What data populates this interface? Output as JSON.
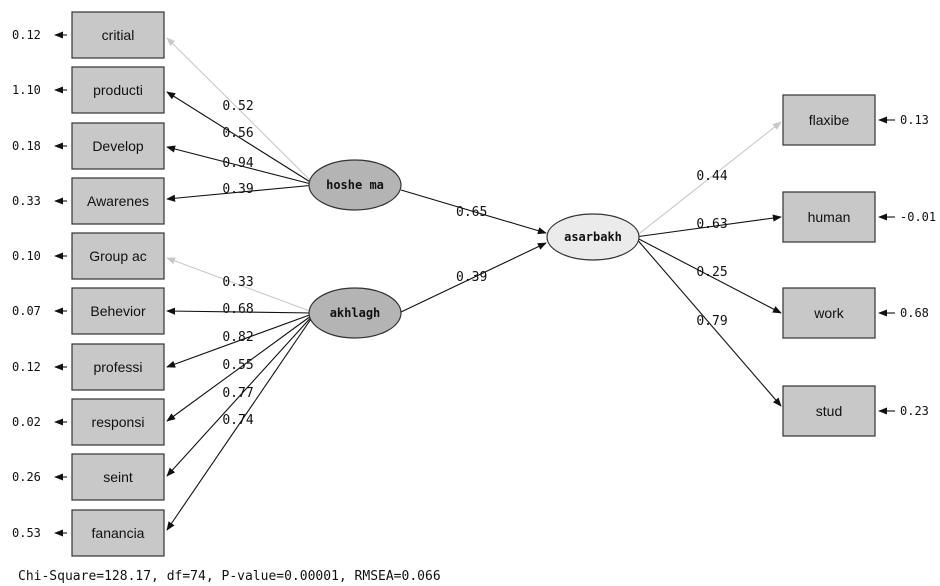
{
  "latents": {
    "hoshe": {
      "label": "hoshe ma",
      "fill": "#b4b4b4"
    },
    "akhlagh": {
      "label": "akhlagh",
      "fill": "#b4b4b4"
    },
    "asarbakh": {
      "label": "asarbakh",
      "fill": "#ebebeb"
    }
  },
  "left_indicators": [
    {
      "label": "critial",
      "error": "0.12",
      "loading": "0.52",
      "factor": "hoshe",
      "faint": true
    },
    {
      "label": "producti",
      "error": "1.10",
      "loading": "0.56",
      "factor": "hoshe",
      "faint": false
    },
    {
      "label": "Develop",
      "error": "0.18",
      "loading": "0.94",
      "factor": "hoshe",
      "faint": false
    },
    {
      "label": "Awarenes",
      "error": "0.33",
      "loading": "0.39",
      "factor": "hoshe",
      "faint": false
    },
    {
      "label": "Group ac",
      "error": "0.10",
      "loading": "0.33",
      "factor": "akhlagh",
      "faint": true
    },
    {
      "label": "Behevior",
      "error": "0.07",
      "loading": "0.68",
      "factor": "akhlagh",
      "faint": false
    },
    {
      "label": "professi",
      "error": "0.12",
      "loading": "0.82",
      "factor": "akhlagh",
      "faint": false
    },
    {
      "label": "responsi",
      "error": "0.02",
      "loading": "0.55",
      "factor": "akhlagh",
      "faint": false
    },
    {
      "label": "seint",
      "error": "0.26",
      "loading": "0.77",
      "factor": "akhlagh",
      "faint": false
    },
    {
      "label": "fanancia",
      "error": "0.53",
      "loading": "0.74",
      "factor": "akhlagh",
      "faint": false
    }
  ],
  "right_indicators": [
    {
      "label": "flaxibe",
      "error": "0.13",
      "loading": "0.44",
      "faint": true
    },
    {
      "label": "human",
      "error": "-0.01",
      "loading": "0.63",
      "faint": false
    },
    {
      "label": "work",
      "error": "0.68",
      "loading": "0.25",
      "faint": false
    },
    {
      "label": "stud",
      "error": "0.23",
      "loading": "0.79",
      "faint": false
    }
  ],
  "structural_paths": [
    {
      "from": "hoshe",
      "to": "asarbakh",
      "coef": "0.65"
    },
    {
      "from": "akhlagh",
      "to": "asarbakh",
      "coef": "0.39"
    }
  ],
  "fit_statistics": "Chi-Square=128.17, df=74, P-value=0.00001, RMSEA=0.066",
  "colors": {
    "line": "#111111",
    "faint_line": "#c8c8c8",
    "box": "#c8c8c8"
  }
}
